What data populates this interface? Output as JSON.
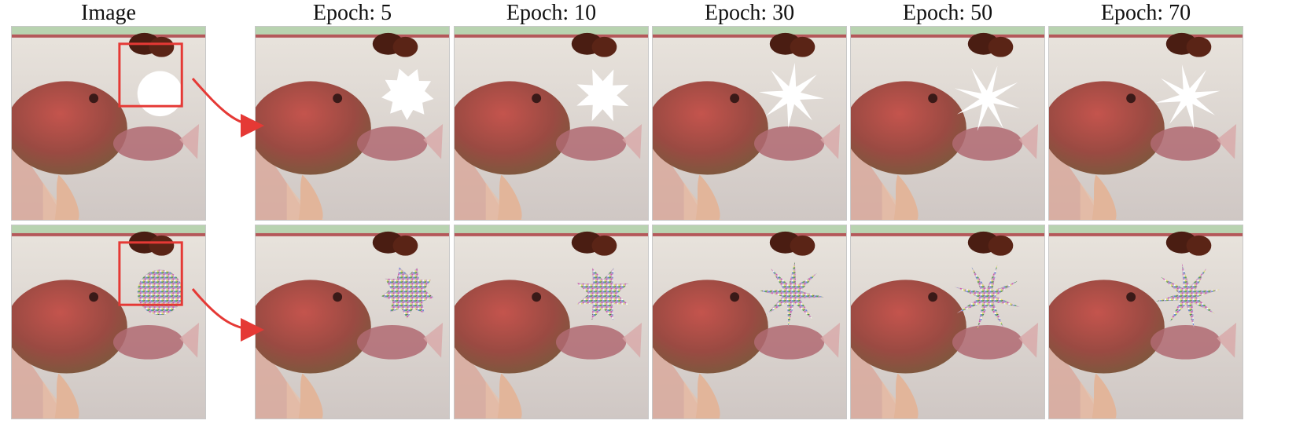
{
  "columns": [
    {
      "id": "image",
      "title": "Image"
    },
    {
      "id": "e5",
      "title": "Epoch: 5"
    },
    {
      "id": "e10",
      "title": "Epoch: 10"
    },
    {
      "id": "e30",
      "title": "Epoch: 30"
    },
    {
      "id": "e50",
      "title": "Epoch: 50"
    },
    {
      "id": "e70",
      "title": "Epoch: 70"
    }
  ],
  "rows": [
    {
      "id": "white-patch",
      "patch_fill": "white"
    },
    {
      "id": "noise-patch",
      "patch_fill": "noise"
    }
  ],
  "colors": {
    "highlight_box": "#e53935",
    "arrow": "#e53935",
    "water": "#ddd6cf",
    "fish": "#a8443f"
  }
}
